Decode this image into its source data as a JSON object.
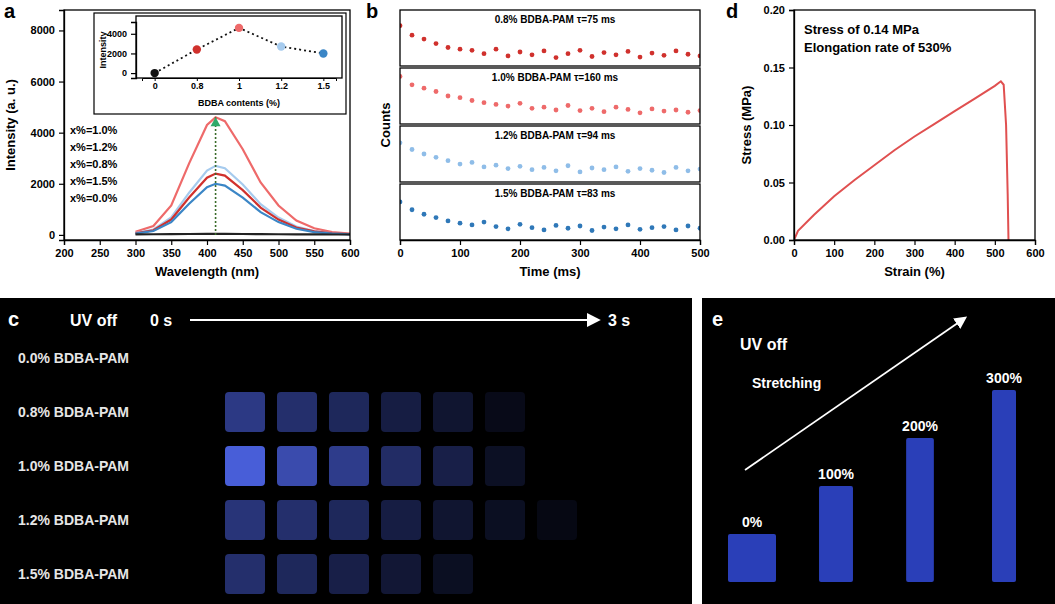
{
  "chart_data": [
    {
      "panel": "a",
      "type": "line",
      "xlabel": "Wavelength (nm)",
      "ylabel": "Intensity (a. u.)",
      "x": [
        300,
        325,
        350,
        375,
        400,
        412,
        425,
        450,
        475,
        500,
        525,
        550,
        575,
        600
      ],
      "series": [
        {
          "name": "x%=1.0%",
          "color": "#ee6a6a",
          "values": [
            120,
            350,
            1150,
            2800,
            4300,
            4600,
            4450,
            3350,
            2050,
            1150,
            560,
            260,
            110,
            50
          ]
        },
        {
          "name": "x%=1.2%",
          "color": "#a6cbee",
          "values": [
            70,
            210,
            680,
            1650,
            2520,
            2700,
            2610,
            1970,
            1200,
            680,
            330,
            150,
            65,
            30
          ]
        },
        {
          "name": "x%=0.8%",
          "color": "#d0312d",
          "values": [
            60,
            180,
            600,
            1460,
            2240,
            2400,
            2320,
            1750,
            1070,
            600,
            290,
            135,
            57,
            26
          ]
        },
        {
          "name": "x%=1.5%",
          "color": "#3b86c6",
          "values": [
            50,
            150,
            500,
            1220,
            1870,
            2000,
            1930,
            1460,
            890,
            500,
            240,
            110,
            48,
            22
          ]
        },
        {
          "name": "x%=0.0%",
          "color": "#222222",
          "values": [
            20,
            25,
            30,
            35,
            40,
            40,
            40,
            35,
            30,
            25,
            20,
            20,
            15,
            15
          ]
        }
      ],
      "xlim": [
        200,
        600
      ],
      "xticks": [
        200,
        250,
        300,
        350,
        400,
        450,
        500,
        550,
        600
      ],
      "ylim": [
        -200,
        8800
      ],
      "yticks": [
        0,
        2000,
        4000,
        6000,
        8000
      ],
      "peak_x": 412,
      "inset": {
        "type": "line",
        "xlabel": "BDBA contents (%)",
        "ylabel": "Intensity",
        "categories": [
          "0",
          "0.8",
          "1",
          "1.2",
          "1.5"
        ],
        "values": [
          0,
          2400,
          4600,
          2700,
          2000
        ],
        "colors": [
          "#111111",
          "#d0312d",
          "#ee6a6a",
          "#a6cbee",
          "#3b86c6"
        ],
        "ylim": [
          -500,
          5200
        ],
        "yticks": [
          0,
          2000,
          4000
        ],
        "marker": "circle",
        "line_style": "dotted"
      }
    },
    {
      "panel": "b",
      "type": "scatter",
      "xlabel": "Time (ms)",
      "ylabel": "Counts",
      "x": [
        0,
        20,
        40,
        60,
        80,
        100,
        120,
        140,
        160,
        180,
        200,
        220,
        240,
        260,
        280,
        300,
        320,
        340,
        360,
        380,
        400,
        420,
        440,
        460,
        480,
        500
      ],
      "series": [
        {
          "name": "0.8% BDBA-PAM τ=75 ms",
          "color": "#d0312d",
          "values": [
            72,
            55,
            48,
            40,
            33,
            30,
            28,
            22,
            30,
            18,
            25,
            20,
            27,
            15,
            22,
            28,
            17,
            24,
            20,
            26,
            16,
            23,
            19,
            27,
            21,
            18
          ]
        },
        {
          "name": "1.0% BDBA-PAM τ=160 ms",
          "color": "#ee6a6a",
          "values": [
            85,
            70,
            64,
            58,
            50,
            47,
            42,
            38,
            35,
            32,
            37,
            28,
            30,
            25,
            33,
            24,
            28,
            22,
            30,
            26,
            20,
            27,
            23,
            25,
            21,
            24
          ]
        },
        {
          "name": "1.2% BDBA-PAM τ=94 ms",
          "color": "#8fbde8",
          "values": [
            70,
            58,
            50,
            44,
            38,
            32,
            35,
            27,
            30,
            24,
            28,
            22,
            26,
            20,
            29,
            18,
            25,
            22,
            27,
            19,
            24,
            21,
            17,
            26,
            20,
            23
          ]
        },
        {
          "name": "1.5% BDBA-PAM τ=83 ms",
          "color": "#2f78b8",
          "values": [
            68,
            54,
            46,
            40,
            34,
            30,
            27,
            32,
            24,
            20,
            28,
            22,
            18,
            26,
            21,
            25,
            17,
            23,
            20,
            27,
            19,
            22,
            24,
            18,
            25,
            21
          ]
        }
      ],
      "xlim": [
        0,
        500
      ],
      "xticks": [
        0,
        100,
        200,
        300,
        400,
        500
      ],
      "ylim": [
        0,
        100
      ],
      "tick_labels": "x",
      "marker": "circle"
    },
    {
      "panel": "d",
      "type": "line",
      "xlabel": "Strain (%)",
      "ylabel": "Stress (MPa)",
      "annotations": [
        "Stress of 0.14 MPa",
        "Elongation rate of 530%"
      ],
      "color": "#e05050",
      "x": [
        0,
        10,
        50,
        100,
        150,
        200,
        250,
        300,
        350,
        400,
        450,
        500,
        515,
        522,
        528,
        532,
        534
      ],
      "values": [
        0,
        0.008,
        0.022,
        0.038,
        0.052,
        0.065,
        0.078,
        0.09,
        0.101,
        0.112,
        0.123,
        0.134,
        0.138,
        0.135,
        0.1,
        0.04,
        0
      ],
      "xlim": [
        0,
        600
      ],
      "xticks": [
        0,
        100,
        200,
        300,
        400,
        500,
        600
      ],
      "ylim": [
        0,
        0.2
      ],
      "yticks": [
        {
          "value": 0,
          "label": "0.00"
        },
        {
          "value": 0.05,
          "label": "0.05"
        },
        {
          "value": 0.1,
          "label": "0.10"
        },
        {
          "value": 0.15,
          "label": "0.15"
        },
        {
          "value": 0.2,
          "label": "0.20"
        }
      ]
    }
  ],
  "photos": {
    "c": {
      "panel": "c",
      "header": "UV off",
      "start_label": "0 s",
      "end_label": "3 s",
      "rows": [
        {
          "label": "0.0% BDBA-PAM",
          "brightness": []
        },
        {
          "label": "0.8% BDBA-PAM",
          "brightness": [
            0.55,
            0.45,
            0.38,
            0.28,
            0.2,
            0.1
          ]
        },
        {
          "label": "1.0% BDBA-PAM",
          "brightness": [
            0.9,
            0.72,
            0.58,
            0.42,
            0.3,
            0.15
          ]
        },
        {
          "label": "1.2% BDBA-PAM",
          "brightness": [
            0.5,
            0.45,
            0.38,
            0.28,
            0.2,
            0.14,
            0.08
          ]
        },
        {
          "label": "1.5% BDBA-PAM",
          "brightness": [
            0.45,
            0.38,
            0.3,
            0.22,
            0.14
          ]
        }
      ]
    },
    "e": {
      "panel": "e",
      "header": "UV off",
      "caption": "Stretching",
      "strips": [
        {
          "label": "0%",
          "strain": 0
        },
        {
          "label": "100%",
          "strain": 100
        },
        {
          "label": "200%",
          "strain": 200
        },
        {
          "label": "300%",
          "strain": 300
        }
      ]
    }
  }
}
